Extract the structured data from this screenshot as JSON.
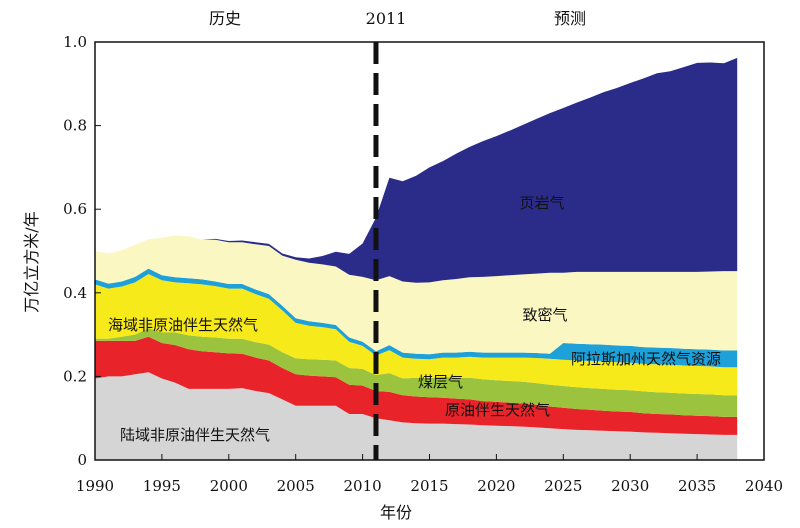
{
  "chart_data": {
    "type": "area",
    "stacked": true,
    "xlabel": "年份",
    "ylabel": "万亿立方米/年",
    "xlim": [
      1990,
      2040
    ],
    "ylim": [
      0,
      1.0
    ],
    "x_ticks": [
      "1990",
      "1995",
      "2000",
      "2005",
      "2010",
      "2015",
      "2020",
      "2025",
      "2030",
      "2035",
      "2040"
    ],
    "y_ticks": [
      "0",
      "0.2",
      "0.4",
      "0.6",
      "0.8",
      "1.0"
    ],
    "divider_year": 2011,
    "period_labels": {
      "history": "历史",
      "divider": "2011",
      "forecast": "预测"
    },
    "grid": false,
    "x": [
      1990,
      1991,
      1992,
      1993,
      1994,
      1995,
      1996,
      1997,
      1998,
      1999,
      2000,
      2001,
      2002,
      2003,
      2004,
      2005,
      2006,
      2007,
      2008,
      2009,
      2010,
      2011,
      2012,
      2013,
      2014,
      2015,
      2016,
      2017,
      2018,
      2019,
      2020,
      2021,
      2022,
      2023,
      2024,
      2025,
      2026,
      2027,
      2028,
      2029,
      2030,
      2031,
      2032,
      2033,
      2034,
      2035,
      2036,
      2037,
      2038
    ],
    "series": [
      {
        "name": "陆域非原油伴生天然气",
        "color": "#d5d5d5",
        "values": [
          0.195,
          0.2,
          0.2,
          0.205,
          0.21,
          0.195,
          0.185,
          0.17,
          0.17,
          0.17,
          0.17,
          0.172,
          0.165,
          0.16,
          0.145,
          0.13,
          0.13,
          0.13,
          0.13,
          0.11,
          0.11,
          0.1,
          0.095,
          0.09,
          0.088,
          0.087,
          0.087,
          0.086,
          0.085,
          0.083,
          0.082,
          0.081,
          0.08,
          0.078,
          0.076,
          0.074,
          0.072,
          0.071,
          0.07,
          0.069,
          0.068,
          0.066,
          0.065,
          0.064,
          0.063,
          0.062,
          0.061,
          0.06,
          0.06
        ]
      },
      {
        "name": "原油伴生天然气",
        "color": "#e8232a",
        "values": [
          0.09,
          0.085,
          0.085,
          0.08,
          0.085,
          0.085,
          0.09,
          0.095,
          0.09,
          0.088,
          0.085,
          0.082,
          0.08,
          0.078,
          0.075,
          0.075,
          0.072,
          0.07,
          0.068,
          0.07,
          0.068,
          0.065,
          0.068,
          0.065,
          0.064,
          0.063,
          0.062,
          0.061,
          0.06,
          0.058,
          0.057,
          0.056,
          0.055,
          0.054,
          0.052,
          0.051,
          0.05,
          0.049,
          0.048,
          0.047,
          0.047,
          0.046,
          0.045,
          0.045,
          0.044,
          0.044,
          0.044,
          0.043,
          0.043
        ]
      },
      {
        "name": "煤层气",
        "color": "#9bc33e",
        "values": [
          0.005,
          0.005,
          0.01,
          0.015,
          0.02,
          0.025,
          0.03,
          0.033,
          0.035,
          0.035,
          0.035,
          0.036,
          0.037,
          0.038,
          0.038,
          0.038,
          0.039,
          0.04,
          0.04,
          0.04,
          0.04,
          0.038,
          0.045,
          0.04,
          0.045,
          0.046,
          0.05,
          0.05,
          0.052,
          0.052,
          0.052,
          0.052,
          0.052,
          0.052,
          0.052,
          0.052,
          0.052,
          0.052,
          0.052,
          0.052,
          0.052,
          0.052,
          0.052,
          0.052,
          0.052,
          0.052,
          0.052,
          0.052,
          0.052
        ]
      },
      {
        "name": "海域非原油伴生天然气",
        "color": "#f7ea1b",
        "values": [
          0.13,
          0.12,
          0.12,
          0.125,
          0.13,
          0.125,
          0.12,
          0.125,
          0.125,
          0.123,
          0.12,
          0.12,
          0.115,
          0.11,
          0.1,
          0.085,
          0.08,
          0.078,
          0.075,
          0.063,
          0.055,
          0.047,
          0.055,
          0.05,
          0.045,
          0.045,
          0.046,
          0.048,
          0.05,
          0.052,
          0.054,
          0.056,
          0.058,
          0.06,
          0.062,
          0.063,
          0.064,
          0.065,
          0.066,
          0.066,
          0.066,
          0.066,
          0.067,
          0.067,
          0.067,
          0.067,
          0.067,
          0.067,
          0.067
        ]
      },
      {
        "name": "阿拉斯加州天然气资源",
        "color": "#1ea0d8",
        "values": [
          0.012,
          0.012,
          0.012,
          0.013,
          0.013,
          0.012,
          0.012,
          0.012,
          0.012,
          0.011,
          0.011,
          0.011,
          0.011,
          0.011,
          0.011,
          0.011,
          0.011,
          0.01,
          0.01,
          0.01,
          0.01,
          0.01,
          0.012,
          0.012,
          0.012,
          0.012,
          0.012,
          0.012,
          0.012,
          0.012,
          0.012,
          0.012,
          0.012,
          0.012,
          0.012,
          0.04,
          0.04,
          0.04,
          0.04,
          0.04,
          0.04,
          0.04,
          0.04,
          0.04,
          0.04,
          0.04,
          0.04,
          0.04,
          0.04
        ]
      },
      {
        "name": "致密气",
        "color": "#fbf7c2",
        "values": [
          0.068,
          0.072,
          0.075,
          0.077,
          0.07,
          0.09,
          0.1,
          0.1,
          0.095,
          0.1,
          0.1,
          0.1,
          0.108,
          0.115,
          0.12,
          0.14,
          0.14,
          0.14,
          0.14,
          0.15,
          0.155,
          0.17,
          0.165,
          0.17,
          0.17,
          0.172,
          0.173,
          0.176,
          0.178,
          0.181,
          0.183,
          0.185,
          0.187,
          0.19,
          0.194,
          0.168,
          0.172,
          0.173,
          0.174,
          0.176,
          0.177,
          0.18,
          0.181,
          0.182,
          0.184,
          0.185,
          0.187,
          0.19,
          0.19
        ]
      },
      {
        "name": "页岩气",
        "color": "#2b2b8a",
        "values": [
          0,
          0,
          0,
          0,
          0,
          0,
          0,
          0,
          0,
          0.002,
          0.003,
          0.004,
          0.005,
          0.005,
          0.005,
          0.006,
          0.01,
          0.02,
          0.035,
          0.05,
          0.08,
          0.15,
          0.235,
          0.24,
          0.256,
          0.275,
          0.285,
          0.3,
          0.312,
          0.325,
          0.335,
          0.346,
          0.358,
          0.37,
          0.382,
          0.394,
          0.405,
          0.417,
          0.43,
          0.44,
          0.452,
          0.463,
          0.475,
          0.48,
          0.49,
          0.5,
          0.5,
          0.497,
          0.51
        ]
      }
    ],
    "labels": {
      "shale": "页岩气",
      "tight": "致密气",
      "offshore": "海域非原油伴生天然气",
      "alaska": "阿拉斯加州天然气资源",
      "coalbed": "煤层气",
      "associated": "原油伴生天然气",
      "onshore": "陆域非原油伴生天然气"
    }
  }
}
